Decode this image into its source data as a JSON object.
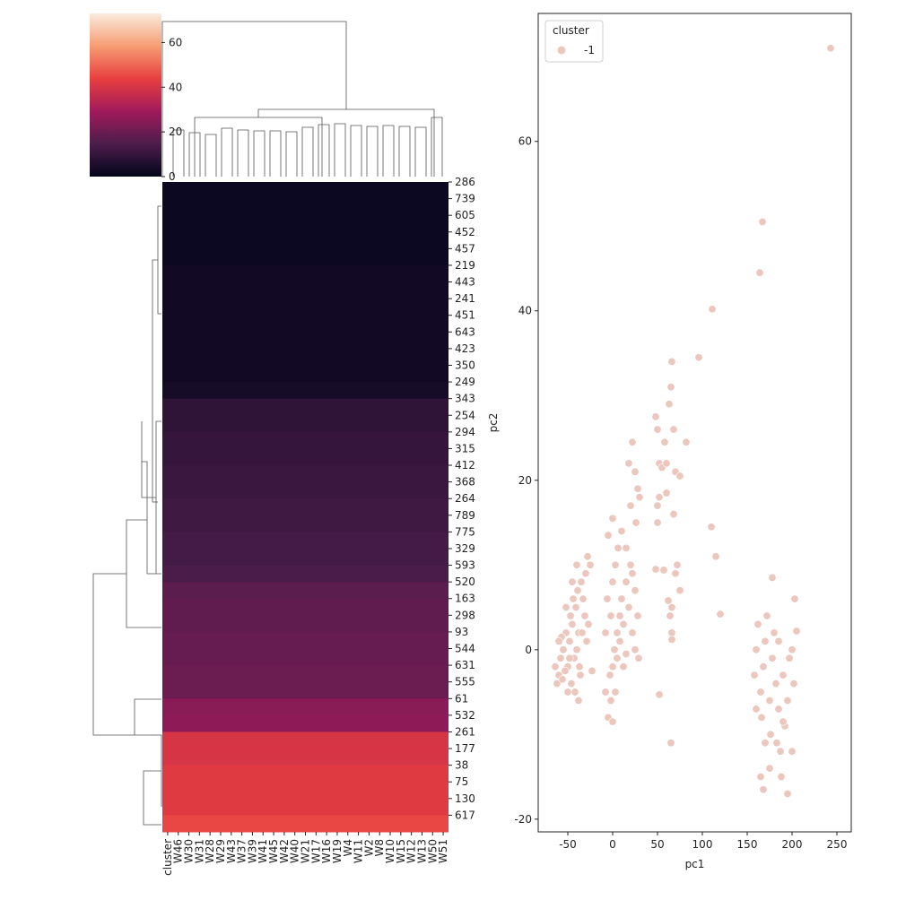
{
  "chart_data": [
    {
      "type": "heatmap",
      "columns": [
        "cluster",
        "W46",
        "W30",
        "W31",
        "W28",
        "W29",
        "W43",
        "W37",
        "W39",
        "W41",
        "W45",
        "W42",
        "W40",
        "W21",
        "W17",
        "W16",
        "W19",
        "W4",
        "W11",
        "W2",
        "W8",
        "W10",
        "W15",
        "W12",
        "W13",
        "W50",
        "W51"
      ],
      "rows": [
        "286",
        "739",
        "605",
        "452",
        "457",
        "219",
        "443",
        "241",
        "451",
        "643",
        "423",
        "350",
        "249",
        "343",
        "254",
        "294",
        "315",
        "412",
        "368",
        "264",
        "789",
        "775",
        "329",
        "593",
        "520",
        "163",
        "298",
        "93",
        "544",
        "631",
        "555",
        "61",
        "532",
        "261",
        "177",
        "38",
        "75",
        "130",
        "617"
      ],
      "values": [
        2,
        2,
        2,
        2,
        2,
        3,
        3,
        3,
        3,
        3,
        3,
        3,
        4,
        9,
        9,
        10,
        10,
        11,
        11,
        12,
        12,
        13,
        13,
        14,
        17,
        18,
        18,
        19,
        19,
        20,
        20,
        25,
        26,
        40,
        40,
        42,
        42,
        42,
        45
      ],
      "colormap": [
        "#03051a",
        "#4c1d4b",
        "#a11a5b",
        "#e83f3f",
        "#f69c73",
        "#faebdd"
      ],
      "clim": [
        0,
        73
      ],
      "cticks": [
        0,
        20,
        40,
        60
      ]
    },
    {
      "type": "scatter",
      "xlabel": "pc1",
      "ylabel": "pc2",
      "legend_title": "cluster",
      "legend": "upper left",
      "xlim": [
        -83,
        266
      ],
      "ylim": [
        -21.5,
        75.1
      ],
      "xticks": [
        -50,
        0,
        50,
        100,
        150,
        200,
        250
      ],
      "yticks": [
        -20,
        0,
        20,
        40,
        60
      ],
      "series": [
        {
          "name": "-1",
          "color": "#ebc7bd",
          "x": [
            -60,
            -58,
            -55,
            -52,
            -50,
            -48,
            -45,
            -43,
            -40,
            -38,
            -36,
            -62,
            -57,
            -53,
            -47,
            -44,
            -41,
            -39,
            -35,
            -33,
            -30,
            -28,
            -25,
            -42,
            -38,
            -46,
            -50,
            -56,
            -60,
            -34,
            -31,
            -29,
            -27,
            -45,
            -40,
            -52,
            -64,
            -48,
            -37,
            -23,
            -8,
            -5,
            -3,
            0,
            2,
            5,
            8,
            10,
            12,
            15,
            18,
            20,
            22,
            25,
            28,
            -2,
            0,
            3,
            6,
            10,
            0,
            -5,
            15,
            18,
            22,
            25,
            28,
            30,
            20,
            26,
            -2,
            0,
            3,
            5,
            8,
            12,
            15,
            -8,
            -6,
            22,
            25,
            29,
            48,
            50,
            52,
            55,
            58,
            60,
            63,
            65,
            66,
            68,
            70,
            75,
            82,
            50,
            50,
            48,
            57,
            62,
            64,
            66,
            66,
            70,
            72,
            75,
            52,
            60,
            68,
            66,
            158,
            160,
            162,
            165,
            166,
            168,
            170,
            172,
            175,
            176,
            178,
            180,
            182,
            185,
            187,
            188,
            190,
            192,
            195,
            197,
            200,
            202,
            203,
            205,
            170,
            165,
            168,
            195,
            178,
            185,
            200,
            175,
            160,
            190,
            183,
            243,
            167,
            164,
            111,
            96,
            110,
            115,
            120,
            52,
            65
          ],
          "values": [
            -3,
            -1,
            0,
            2,
            -2,
            1,
            3,
            -1,
            0,
            2,
            -3,
            -4,
            1.5,
            -2.5,
            4,
            6,
            5,
            7,
            8,
            6,
            9,
            11,
            10,
            -5,
            -6,
            -4,
            -5,
            -3.5,
            1,
            2,
            4,
            1,
            3,
            8,
            10,
            5,
            -2,
            -1,
            -2,
            -2.5,
            -5,
            -8,
            -3,
            -2,
            0,
            2,
            4,
            6,
            3,
            8,
            5,
            10,
            9,
            7,
            4,
            4,
            8,
            10,
            12,
            14,
            15.5,
            13.5,
            12,
            22,
            24.5,
            21,
            19,
            18,
            17,
            15,
            -6,
            -8.5,
            -5,
            -1,
            1,
            -2,
            -0.5,
            2,
            6,
            2,
            0,
            -1,
            27.5,
            26,
            22,
            21.5,
            24.5,
            22,
            29,
            31,
            34,
            26,
            21,
            20.5,
            24.5,
            17,
            15,
            9.5,
            9.4,
            5.8,
            4,
            2,
            1.2,
            9,
            10,
            7,
            18,
            18.5,
            16,
            5,
            -3,
            0,
            3,
            -5,
            -8,
            -2,
            1,
            4,
            -6,
            -10,
            -1,
            2,
            -4,
            -7,
            -12,
            -15,
            -3,
            -9,
            -6,
            -1,
            0,
            -4,
            6,
            2.2,
            -11,
            -15,
            -16.5,
            -17,
            8.5,
            1,
            -12,
            -14,
            -7,
            -8.5,
            -11,
            71,
            50.5,
            44.5,
            40.2,
            34.5,
            14.5,
            11,
            4.2,
            -5.3,
            -11
          ]
        }
      ]
    }
  ]
}
